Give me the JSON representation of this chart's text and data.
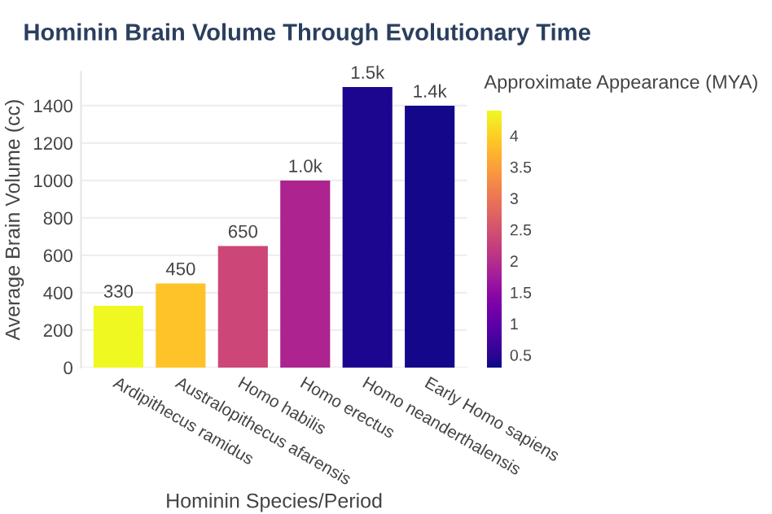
{
  "chart_data": {
    "type": "bar",
    "title": "Hominin Brain Volume Through Evolutionary Time",
    "xlabel": "Hominin Species/Period",
    "ylabel": "Average Brain Volume (cc)",
    "clabel": "Approximate Appearance (MYA)",
    "categories": [
      "Ardipithecus ramidus",
      "Australopithecus afarensis",
      "Homo habilis",
      "Homo erectus",
      "Homo neanderthalensis",
      "Early Homo sapiens"
    ],
    "values": [
      330,
      450,
      650,
      1000,
      1500,
      1400
    ],
    "value_labels": [
      "330",
      "450",
      "650",
      "1.0k",
      "1.5k",
      "1.4k"
    ],
    "colors": [
      "#eff821",
      "#fdc328",
      "#cc4778",
      "#ad2490",
      "#1c068f",
      "#14078a"
    ],
    "ylim": [
      0,
      1580
    ],
    "yticks": [
      0,
      200,
      400,
      600,
      800,
      1000,
      1200,
      1400
    ],
    "clim": [
      0.3,
      4.4
    ],
    "cticks": [
      0.5,
      1,
      1.5,
      2,
      2.5,
      3,
      3.5,
      4
    ],
    "grid": "y"
  }
}
